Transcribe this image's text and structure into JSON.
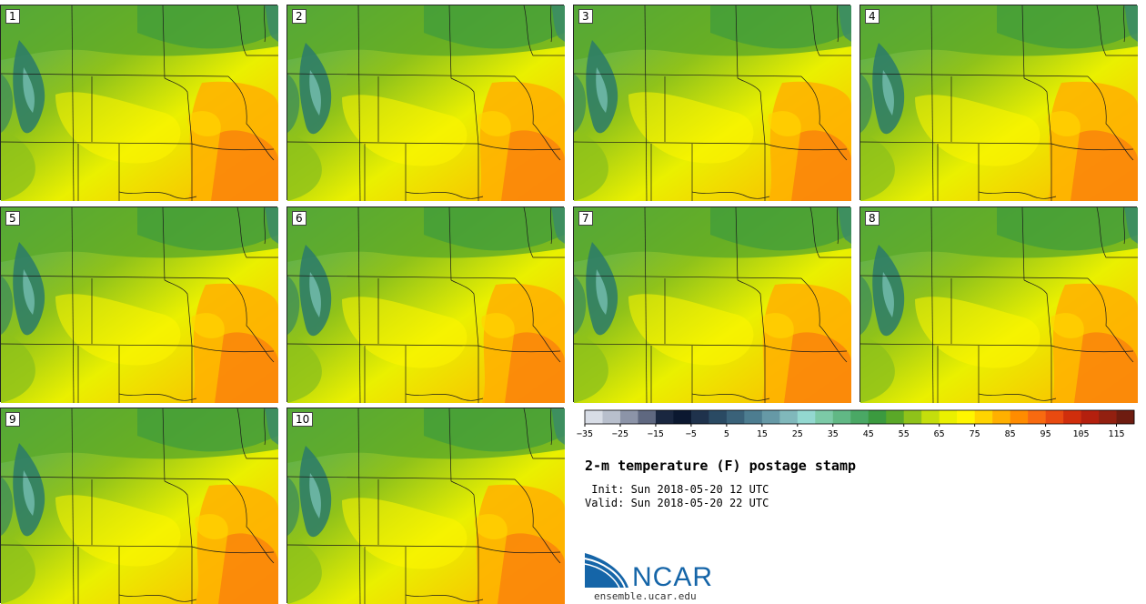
{
  "figure": {
    "title": "2-m temperature (F) postage stamp",
    "init_label": " Init: Sun 2018-05-20 12 UTC",
    "valid_label": "Valid: Sun 2018-05-20 22 UTC",
    "logo_text": "NCAR",
    "url": "ensemble.ucar.edu"
  },
  "members": [
    "1",
    "2",
    "3",
    "4",
    "5",
    "6",
    "7",
    "8",
    "9",
    "10"
  ],
  "colorbar": {
    "units": "F",
    "ticks": [
      "−35",
      "−25",
      "−15",
      "−5",
      "5",
      "15",
      "25",
      "35",
      "45",
      "55",
      "65",
      "75",
      "85",
      "95",
      "105",
      "115"
    ],
    "min": -35,
    "max": 125,
    "step": 5,
    "colors": [
      "#d8dde6",
      "#b8bfcc",
      "#8c94a8",
      "#5f6880",
      "#1a2740",
      "#0b1830",
      "#1f324c",
      "#2a4a63",
      "#3a6279",
      "#4d7d90",
      "#6699a6",
      "#80b8bb",
      "#93d8d0",
      "#7ccaa7",
      "#61b885",
      "#4aa865",
      "#3b9a3f",
      "#5aa828",
      "#8fc21a",
      "#c4de0c",
      "#eaf000",
      "#fff600",
      "#ffd400",
      "#ffb000",
      "#ff8c00",
      "#f86a10",
      "#e84a10",
      "#d02e0c",
      "#b4200e",
      "#922010",
      "#6e1c10",
      "#e0e0e0"
    ]
  }
}
